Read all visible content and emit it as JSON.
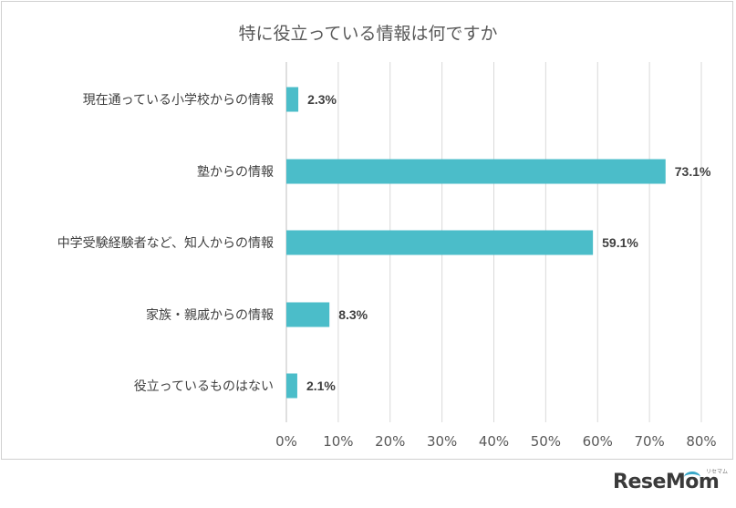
{
  "chart_data": {
    "type": "bar",
    "orientation": "horizontal",
    "title": "特に役立っている情報は何ですか",
    "categories": [
      "現在通っている小学校からの情報",
      "塾からの情報",
      "中学受験経験者など、知人からの情報",
      "家族・親戚からの情報",
      "役立っているものはない"
    ],
    "values": [
      2.3,
      73.1,
      59.1,
      8.3,
      2.1
    ],
    "data_labels": [
      "2.3%",
      "73.1%",
      "59.1%",
      "8.3%",
      "2.1%"
    ],
    "x_ticks": [
      "0%",
      "10%",
      "20%",
      "30%",
      "40%",
      "50%",
      "60%",
      "70%",
      "80%"
    ],
    "xlim": [
      0,
      80
    ],
    "grid": true,
    "bar_color": "#4bbdc9"
  },
  "logo": {
    "text": "ReseMom",
    "kana": "リセマム"
  }
}
